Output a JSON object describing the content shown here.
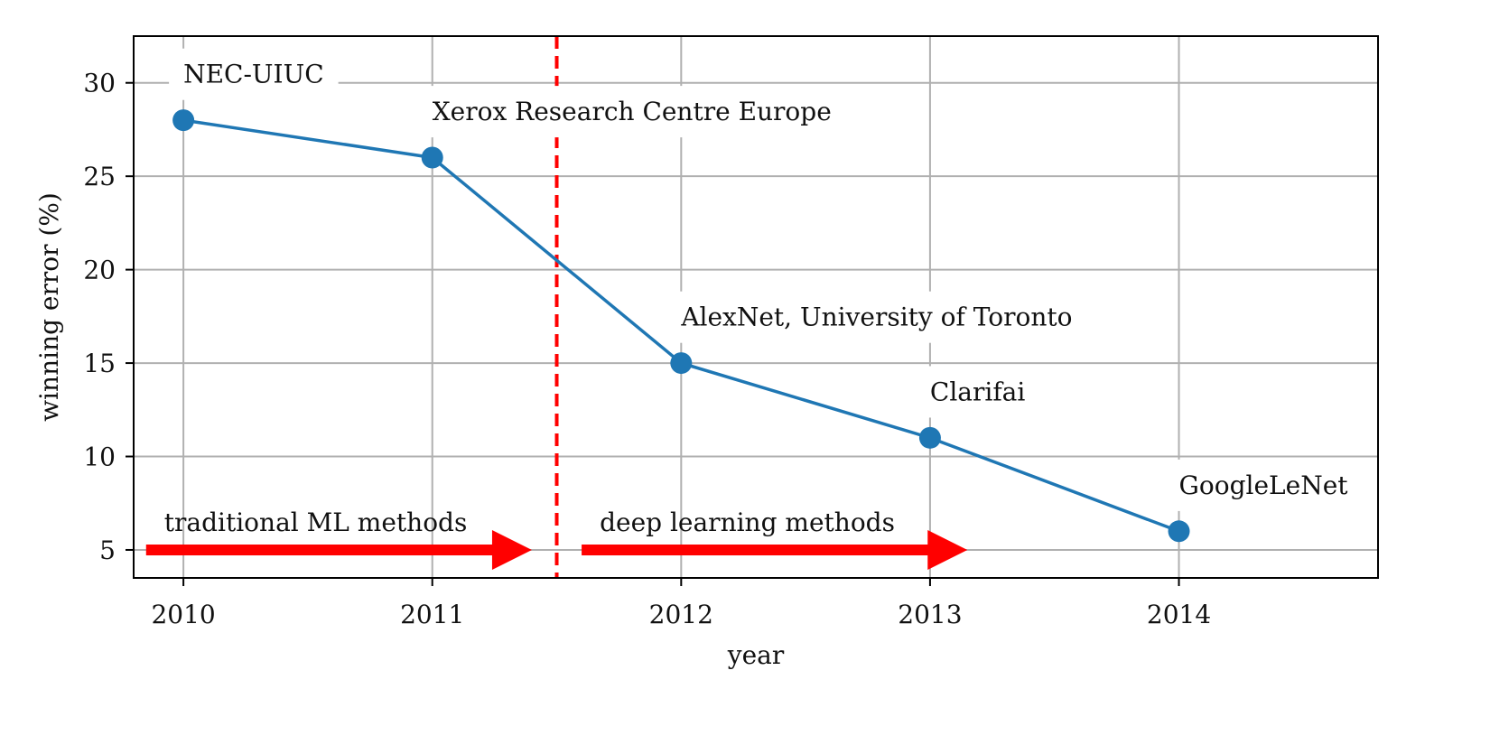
{
  "chart_data": {
    "type": "line",
    "xlabel": "year",
    "ylabel": "winning error (%)",
    "xlim": [
      2009.8,
      2014.8
    ],
    "ylim": [
      3.5,
      32.5
    ],
    "x_ticks": [
      "2010",
      "2011",
      "2012",
      "2013",
      "2014"
    ],
    "y_ticks": [
      "5",
      "10",
      "15",
      "20",
      "25",
      "30"
    ],
    "grid": true,
    "series": [
      {
        "color": "#1f77b4",
        "x": [
          2010,
          2011,
          2012,
          2013,
          2014
        ],
        "y": [
          28,
          26,
          15,
          11,
          6
        ]
      }
    ],
    "point_labels": [
      {
        "text": "NEC-UIUC",
        "x": 2010,
        "y": 30
      },
      {
        "text": "Xerox Research Centre Europe",
        "x": 2011,
        "y": 28
      },
      {
        "text": "AlexNet, University of Toronto",
        "x": 2012,
        "y": 17
      },
      {
        "text": "Clarifai",
        "x": 2013,
        "y": 13
      },
      {
        "text": "GoogleLeNet",
        "x": 2014,
        "y": 8
      }
    ],
    "divider": {
      "x": 2011.5,
      "color": "#ff0000",
      "style": "dashed"
    },
    "arrows": [
      {
        "text": "traditional ML methods",
        "x_start": 2009.85,
        "x_end": 2011.4,
        "y": 5,
        "color": "#ff0000"
      },
      {
        "text": "deep learning methods",
        "x_start": 2011.6,
        "x_end": 2013.15,
        "y": 5,
        "color": "#ff0000"
      }
    ],
    "colors": {
      "line": "#1f77b4",
      "grid": "#b0b0b0",
      "accent": "#ff0000",
      "axes": "#000000"
    }
  }
}
